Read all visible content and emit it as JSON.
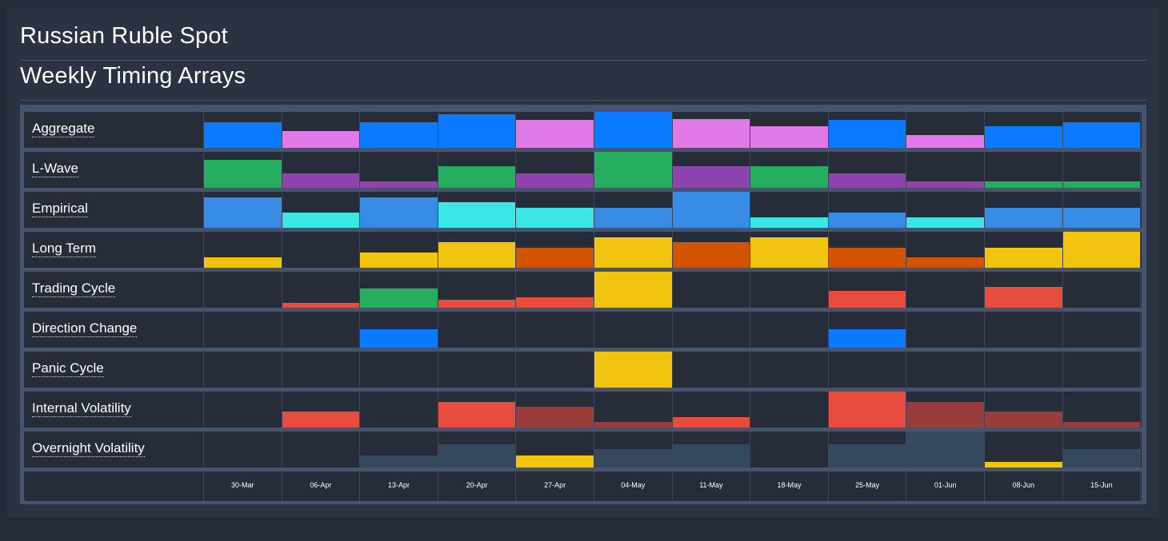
{
  "header": {
    "title": "Russian Ruble Spot",
    "subtitle": "Weekly Timing Arrays"
  },
  "chart_data": {
    "type": "heatmap",
    "title": "Weekly Timing Arrays",
    "categories": [
      "30-Mar",
      "06-Apr",
      "13-Apr",
      "20-Apr",
      "27-Apr",
      "04-May",
      "11-May",
      "18-May",
      "25-May",
      "01-Jun",
      "08-Jun",
      "15-Jun"
    ],
    "colors": {
      "blue": "#0a7bff",
      "pink": "#e07ae6",
      "green": "#25ad60",
      "purple": "#8e44ad",
      "lightblue": "#388ce6",
      "cyan": "#3ae6e6",
      "yellow": "#f1c40f",
      "orange": "#d35400",
      "red": "#e74c3c",
      "darkred": "#983d3b",
      "slate": "#34495e"
    },
    "series": [
      {
        "name": "Aggregate",
        "values": [
          0.72,
          0.47,
          0.72,
          0.93,
          0.77,
          1.0,
          0.81,
          0.6,
          0.77,
          0.35,
          0.6,
          0.72
        ],
        "colors": [
          "blue",
          "pink",
          "blue",
          "blue",
          "pink",
          "blue",
          "pink",
          "pink",
          "blue",
          "pink",
          "blue",
          "blue"
        ]
      },
      {
        "name": "L-Wave",
        "values": [
          0.78,
          0.4,
          0.18,
          0.6,
          0.4,
          1.0,
          0.6,
          0.6,
          0.4,
          0.18,
          0.18,
          0.18
        ],
        "colors": [
          "green",
          "purple",
          "purple",
          "green",
          "purple",
          "green",
          "purple",
          "green",
          "purple",
          "purple",
          "green",
          "green"
        ]
      },
      {
        "name": "Empirical",
        "values": [
          0.84,
          0.42,
          0.84,
          0.71,
          0.56,
          0.56,
          1.0,
          0.29,
          0.42,
          0.29,
          0.56,
          0.56
        ],
        "colors": [
          "lightblue",
          "cyan",
          "lightblue",
          "cyan",
          "cyan",
          "lightblue",
          "lightblue",
          "cyan",
          "lightblue",
          "cyan",
          "lightblue",
          "lightblue"
        ]
      },
      {
        "name": "Long Term",
        "values": [
          0.29,
          0,
          0.42,
          0.71,
          0.56,
          0.84,
          0.71,
          0.84,
          0.56,
          0.29,
          0.56,
          1.0
        ],
        "colors": [
          "yellow",
          "yellow",
          "yellow",
          "yellow",
          "orange",
          "yellow",
          "orange",
          "yellow",
          "orange",
          "orange",
          "yellow",
          "yellow"
        ]
      },
      {
        "name": "Trading Cycle",
        "values": [
          0,
          0.13,
          0.53,
          0.22,
          0.29,
          1.0,
          0,
          0,
          0.47,
          0,
          0.58,
          0
        ],
        "colors": [
          "red",
          "red",
          "green",
          "red",
          "red",
          "yellow",
          "red",
          "red",
          "red",
          "red",
          "red",
          "red"
        ]
      },
      {
        "name": "Direction Change",
        "values": [
          0,
          0,
          0.51,
          0,
          0,
          0,
          0,
          0,
          0.51,
          0,
          0,
          0
        ],
        "colors": [
          "blue",
          "blue",
          "blue",
          "blue",
          "blue",
          "blue",
          "blue",
          "blue",
          "blue",
          "blue",
          "blue",
          "blue"
        ]
      },
      {
        "name": "Panic Cycle",
        "values": [
          0,
          0,
          0,
          0,
          0,
          1.0,
          0,
          0,
          0,
          0,
          0,
          0
        ],
        "colors": [
          "yellow",
          "yellow",
          "yellow",
          "yellow",
          "yellow",
          "yellow",
          "yellow",
          "yellow",
          "yellow",
          "yellow",
          "yellow",
          "yellow"
        ]
      },
      {
        "name": "Internal Volatility",
        "values": [
          0,
          0.44,
          0,
          0.71,
          0.58,
          0.16,
          0.29,
          0,
          1.0,
          0.71,
          0.44,
          0.16
        ],
        "colors": [
          "red",
          "red",
          "red",
          "red",
          "darkred",
          "darkred",
          "red",
          "red",
          "red",
          "darkred",
          "darkred",
          "darkred"
        ]
      },
      {
        "name": "Overnight Volatility",
        "values": [
          0,
          0,
          0.33,
          0.64,
          0.33,
          0.51,
          0.64,
          0,
          0.64,
          1.0,
          0.16,
          0.51
        ],
        "colors": [
          "slate",
          "slate",
          "slate",
          "slate",
          "yellow",
          "slate",
          "slate",
          "slate",
          "slate",
          "slate",
          "yellow",
          "slate"
        ]
      }
    ]
  }
}
